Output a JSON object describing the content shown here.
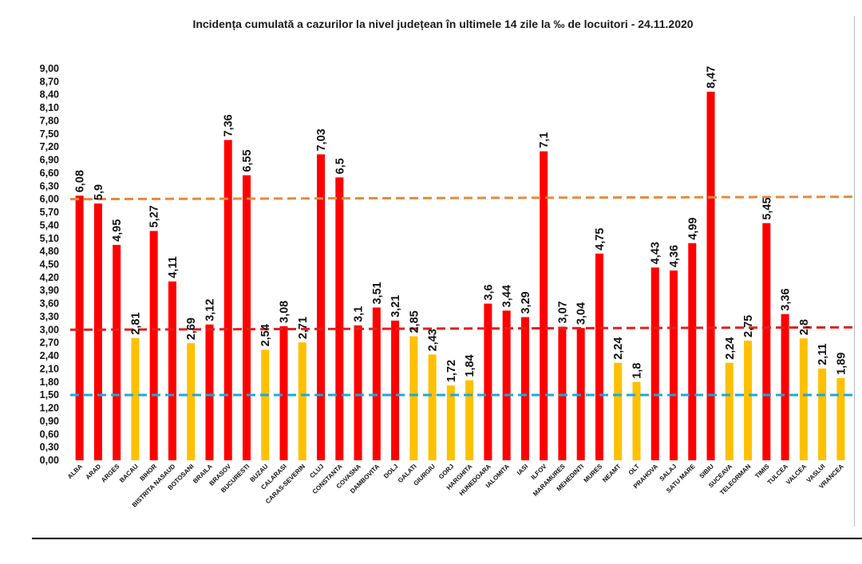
{
  "chart_data": {
    "type": "bar",
    "title": "Incidența cumulată a cazurilor la nivel județean în ultimele 14 zile la ‰ de locuitori - 24.11.2020",
    "xlabel": "",
    "ylabel": "",
    "ylim": [
      0,
      9
    ],
    "ytick_step": 0.3,
    "grid": false,
    "legend": "none",
    "categories": [
      "ALBA",
      "ARAD",
      "ARGES",
      "BACAU",
      "BIHOR",
      "BISTRITA NASAUD",
      "BOTOSANI",
      "BRAILA",
      "BRASOV",
      "BUCURESTI",
      "BUZAU",
      "CALARASI",
      "CARAS-SEVERIN",
      "CLUJ",
      "CONSTANTA",
      "COVASNA",
      "DAMBOVITA",
      "DOLJ",
      "GALATI",
      "GIURGIU",
      "GORJ",
      "HARGHITA",
      "HUNEDOARA",
      "IALOMITA",
      "IASI",
      "ILFOV",
      "MARAMURES",
      "MEHEDINTI",
      "MURES",
      "NEAMT",
      "OLT",
      "PRAHOVA",
      "SALAJ",
      "SATU MARE",
      "SIBIU",
      "SUCEAVA",
      "TELEORMAN",
      "TIMIS",
      "TULCEA",
      "VALCEA",
      "VASLUI",
      "VRANCEA"
    ],
    "values": [
      6.08,
      5.9,
      4.95,
      2.81,
      5.27,
      4.11,
      2.69,
      3.12,
      7.36,
      6.55,
      2.54,
      3.08,
      2.71,
      7.03,
      6.5,
      3.1,
      3.51,
      3.21,
      2.85,
      2.43,
      1.72,
      1.84,
      3.6,
      3.44,
      3.29,
      7.1,
      3.07,
      3.04,
      4.75,
      2.24,
      1.8,
      4.43,
      4.36,
      4.99,
      8.47,
      2.24,
      2.75,
      5.45,
      3.36,
      2.8,
      2.11,
      1.89
    ],
    "value_labels": [
      "6,08",
      "5,9",
      "4,95",
      "2,81",
      "5,27",
      "4,11",
      "2,69",
      "3,12",
      "7,36",
      "6,55",
      "2,54",
      "3,08",
      "2,71",
      "7,03",
      "6,5",
      "3,1",
      "3,51",
      "3,21",
      "2,85",
      "2,43",
      "1,72",
      "1,84",
      "3,6",
      "3,44",
      "3,29",
      "7,1",
      "3,07",
      "3,04",
      "4,75",
      "2,24",
      "1,8",
      "4,43",
      "4,36",
      "4,99",
      "8,47",
      "2,24",
      "2,75",
      "5,45",
      "3,36",
      "2,8",
      "2,11",
      "1,89"
    ],
    "threshold_lines": [
      {
        "value": 6.0,
        "color": "#e58a3c"
      },
      {
        "value": 3.0,
        "color": "#e02020"
      },
      {
        "value": 1.5,
        "color": "#1fa8d8"
      }
    ],
    "colors": {
      "above_threshold": "#ff0000",
      "below_threshold": "#ffc000"
    }
  }
}
